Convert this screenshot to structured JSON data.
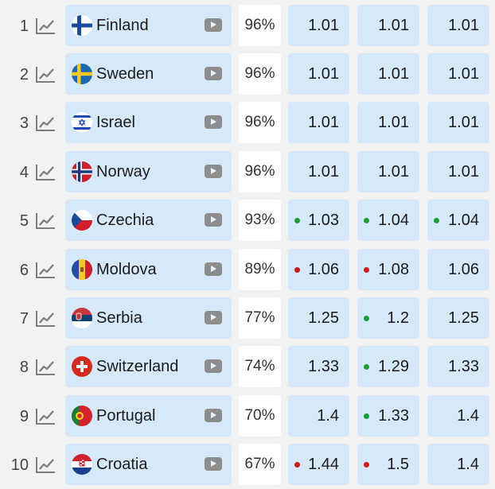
{
  "colors": {
    "cell_bg": "#d6e9fb",
    "percent_bg": "#ffffff",
    "page_bg": "#f2f2f2",
    "dot_up": "#16a034",
    "dot_down": "#d31717",
    "icon_gray": "#8d8d8d"
  },
  "icons": {
    "trend": "line-chart-icon",
    "play": "play-icon"
  },
  "rows": [
    {
      "rank": "1",
      "country": "Finland",
      "flag": "finland",
      "percent": "96%",
      "odds": [
        {
          "value": "1.01",
          "trend": ""
        },
        {
          "value": "1.01",
          "trend": ""
        },
        {
          "value": "1.01",
          "trend": ""
        }
      ]
    },
    {
      "rank": "2",
      "country": "Sweden",
      "flag": "sweden",
      "percent": "96%",
      "odds": [
        {
          "value": "1.01",
          "trend": ""
        },
        {
          "value": "1.01",
          "trend": ""
        },
        {
          "value": "1.01",
          "trend": ""
        }
      ]
    },
    {
      "rank": "3",
      "country": "Israel",
      "flag": "israel",
      "percent": "96%",
      "odds": [
        {
          "value": "1.01",
          "trend": ""
        },
        {
          "value": "1.01",
          "trend": ""
        },
        {
          "value": "1.01",
          "trend": ""
        }
      ]
    },
    {
      "rank": "4",
      "country": "Norway",
      "flag": "norway",
      "percent": "96%",
      "odds": [
        {
          "value": "1.01",
          "trend": ""
        },
        {
          "value": "1.01",
          "trend": ""
        },
        {
          "value": "1.01",
          "trend": ""
        }
      ]
    },
    {
      "rank": "5",
      "country": "Czechia",
      "flag": "czechia",
      "percent": "93%",
      "odds": [
        {
          "value": "1.03",
          "trend": "up"
        },
        {
          "value": "1.04",
          "trend": "up"
        },
        {
          "value": "1.04",
          "trend": "up"
        }
      ]
    },
    {
      "rank": "6",
      "country": "Moldova",
      "flag": "moldova",
      "percent": "89%",
      "odds": [
        {
          "value": "1.06",
          "trend": "down"
        },
        {
          "value": "1.08",
          "trend": "down"
        },
        {
          "value": "1.06",
          "trend": ""
        }
      ]
    },
    {
      "rank": "7",
      "country": "Serbia",
      "flag": "serbia",
      "percent": "77%",
      "odds": [
        {
          "value": "1.25",
          "trend": ""
        },
        {
          "value": "1.2",
          "trend": "up"
        },
        {
          "value": "1.25",
          "trend": ""
        }
      ]
    },
    {
      "rank": "8",
      "country": "Switzerland",
      "flag": "switzerland",
      "percent": "74%",
      "odds": [
        {
          "value": "1.33",
          "trend": ""
        },
        {
          "value": "1.29",
          "trend": "up"
        },
        {
          "value": "1.33",
          "trend": ""
        }
      ]
    },
    {
      "rank": "9",
      "country": "Portugal",
      "flag": "portugal",
      "percent": "70%",
      "odds": [
        {
          "value": "1.4",
          "trend": ""
        },
        {
          "value": "1.33",
          "trend": "up"
        },
        {
          "value": "1.4",
          "trend": ""
        }
      ]
    },
    {
      "rank": "10",
      "country": "Croatia",
      "flag": "croatia",
      "percent": "67%",
      "odds": [
        {
          "value": "1.44",
          "trend": "down"
        },
        {
          "value": "1.5",
          "trend": "down"
        },
        {
          "value": "1.4",
          "trend": ""
        }
      ]
    }
  ]
}
